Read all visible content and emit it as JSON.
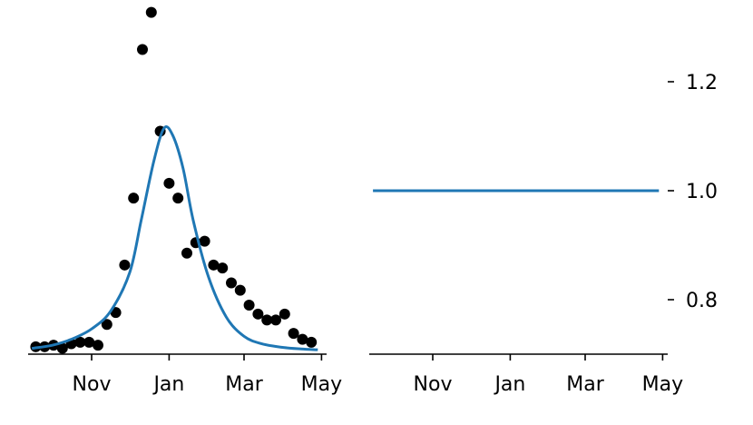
{
  "chart_data": [
    {
      "type": "scatter",
      "title": "",
      "xlabel": "",
      "ylabel": "",
      "x_tick_labels": [
        "Nov",
        "Jan",
        "Mar",
        "May"
      ],
      "x_ticks": [
        "2016-11-01",
        "2017-01-01",
        "2017-03-01",
        "2017-05-01"
      ],
      "xlim": [
        "2016-09-12",
        "2017-05-05"
      ],
      "y_tick_labels": [],
      "ylim": [
        0.0,
        2.2
      ],
      "grid": false,
      "series": [
        {
          "kind": "points",
          "color": "#000000",
          "x": [
            "2016-09-18",
            "2016-09-25",
            "2016-10-02",
            "2016-10-09",
            "2016-10-16",
            "2016-10-23",
            "2016-10-30",
            "2016-11-06",
            "2016-11-13",
            "2016-11-20",
            "2016-11-27",
            "2016-12-04",
            "2016-12-11",
            "2016-12-18",
            "2016-12-25",
            "2017-01-01",
            "2017-01-08",
            "2017-01-15",
            "2017-01-22",
            "2017-01-29",
            "2017-02-05",
            "2017-02-12",
            "2017-02-19",
            "2017-02-26",
            "2017-03-05",
            "2017-03-12",
            "2017-03-19",
            "2017-03-26",
            "2017-04-02",
            "2017-04-09",
            "2017-04-16",
            "2017-04-23"
          ],
          "y": [
            0.05,
            0.05,
            0.06,
            0.04,
            0.07,
            0.08,
            0.08,
            0.06,
            0.2,
            0.28,
            0.6,
            1.05,
            2.05,
            2.3,
            1.5,
            1.15,
            1.05,
            0.68,
            0.75,
            0.76,
            0.6,
            0.58,
            0.48,
            0.43,
            0.33,
            0.27,
            0.23,
            0.23,
            0.27,
            0.14,
            0.1,
            0.08
          ]
        },
        {
          "kind": "line",
          "color": "#1f77b4",
          "x": [
            "2016-09-16",
            "2016-10-01",
            "2016-10-16",
            "2016-11-01",
            "2016-11-16",
            "2016-12-01",
            "2016-12-10",
            "2016-12-20",
            "2016-12-28",
            "2017-01-04",
            "2017-01-12",
            "2017-01-20",
            "2017-02-01",
            "2017-02-15",
            "2017-03-01",
            "2017-03-15",
            "2017-04-01",
            "2017-04-15",
            "2017-04-27"
          ],
          "y": [
            0.04,
            0.06,
            0.1,
            0.17,
            0.29,
            0.55,
            0.9,
            1.3,
            1.52,
            1.47,
            1.25,
            0.9,
            0.52,
            0.25,
            0.12,
            0.07,
            0.045,
            0.035,
            0.03
          ]
        }
      ]
    },
    {
      "type": "line",
      "title": "",
      "xlabel": "",
      "ylabel": "",
      "x_tick_labels": [
        "Nov",
        "Jan",
        "Mar",
        "May"
      ],
      "x_ticks": [
        "2016-11-01",
        "2017-01-01",
        "2017-03-01",
        "2017-05-01"
      ],
      "xlim": [
        "2016-09-12",
        "2017-05-05"
      ],
      "y_tick_labels": [
        "1.2",
        "1.0",
        "0.8"
      ],
      "y_ticks": [
        1.2,
        1.0,
        0.8
      ],
      "ylim": [
        0.7,
        1.3
      ],
      "y_axis_side": "right",
      "grid": false,
      "series": [
        {
          "kind": "line",
          "color": "#1f77b4",
          "x": [
            "2016-09-16",
            "2017-04-27"
          ],
          "y": [
            1.0,
            1.0
          ]
        }
      ]
    }
  ]
}
